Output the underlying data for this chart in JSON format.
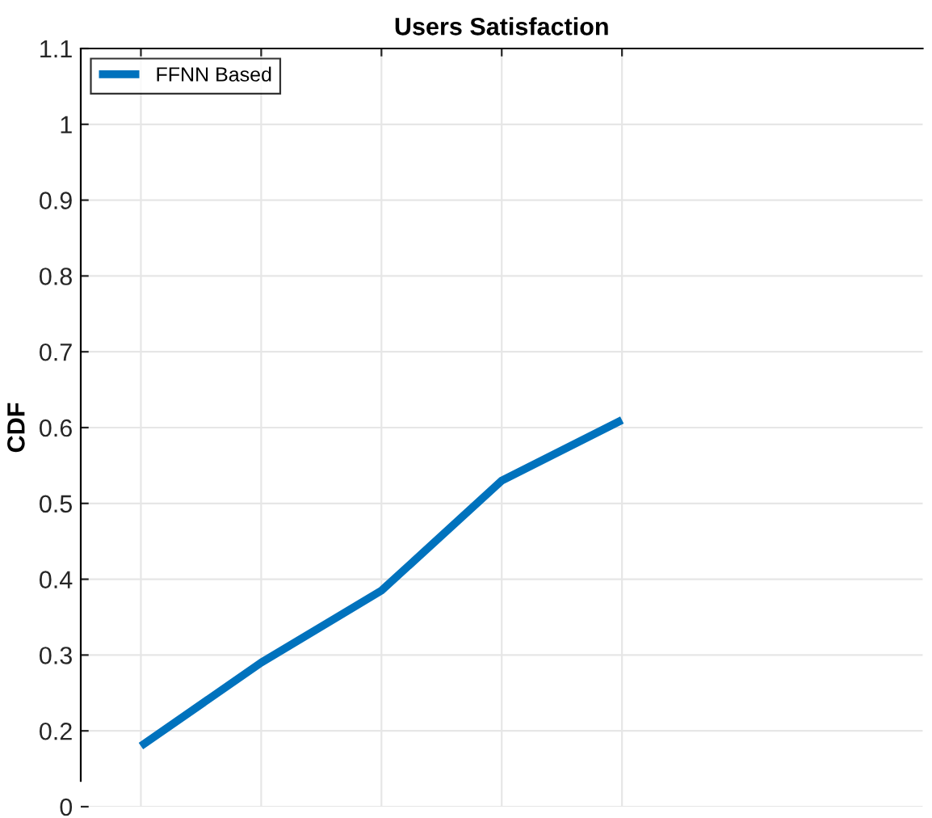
{
  "chart_data": {
    "type": "line",
    "title": "Users Satisfaction",
    "ylabel": "CDF",
    "categories": [
      null,
      null,
      null,
      null,
      null
    ],
    "series": [
      {
        "name": "FFNN Based",
        "color": "#0072bd",
        "values": [
          0.18,
          0.29,
          0.385,
          0.53,
          0.61
        ]
      }
    ],
    "ylim": [
      0.1,
      1.1
    ],
    "yticks": [
      {
        "value": 0.1,
        "label": "0"
      },
      0.2,
      0.3,
      0.4,
      0.5,
      0.6,
      0.7,
      0.8,
      0.9,
      1,
      1.1
    ],
    "tick_labels": "y",
    "grid": true,
    "legend": "top left"
  }
}
